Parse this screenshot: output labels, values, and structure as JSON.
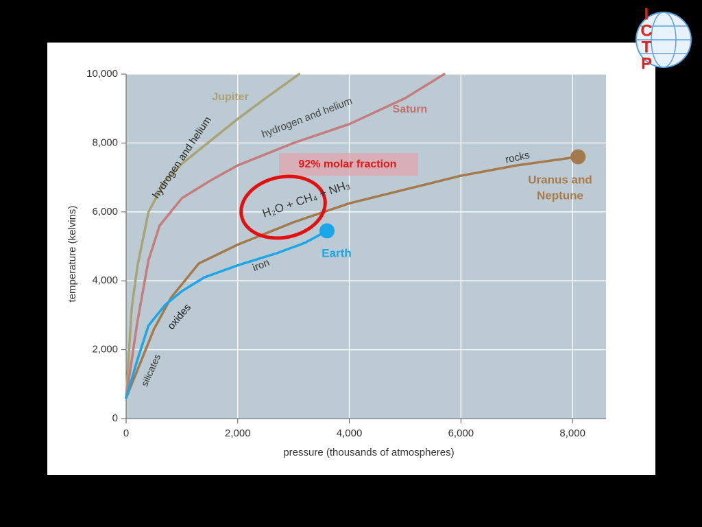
{
  "logo": {
    "letters": [
      "I",
      "C",
      "T",
      "P"
    ]
  },
  "chart_data": {
    "type": "line",
    "xlabel": "pressure (thousands of atmospheres)",
    "ylabel": "temperature (kelvins)",
    "xlim": [
      0,
      8600
    ],
    "ylim": [
      0,
      10000
    ],
    "xticks": [
      0,
      {
        "value": 2000,
        "label": "2,000"
      },
      {
        "value": 4000,
        "label": "4,000"
      },
      {
        "value": 6000,
        "label": "6,000"
      },
      {
        "value": 8000,
        "label": "8,000"
      }
    ],
    "yticks": [
      0,
      {
        "value": 2000,
        "label": "2,000"
      },
      {
        "value": 4000,
        "label": "4,000"
      },
      {
        "value": 6000,
        "label": "6,000"
      },
      {
        "value": 8000,
        "label": "8,000"
      },
      {
        "value": 10000,
        "label": "10,000"
      }
    ],
    "grid": true,
    "series": [
      {
        "name": "Jupiter",
        "color": "#a8a478",
        "x": [
          0,
          100,
          200,
          400,
          700,
          1000,
          1500,
          2000,
          2500,
          3100
        ],
        "values": [
          600,
          3200,
          4400,
          6000,
          6900,
          7400,
          8050,
          8700,
          9300,
          10000
        ]
      },
      {
        "name": "Saturn",
        "color": "#c47c7c",
        "x": [
          0,
          200,
          400,
          600,
          1000,
          1500,
          2000,
          3000,
          4000,
          5000,
          5700
        ],
        "values": [
          600,
          2800,
          4600,
          5600,
          6400,
          6900,
          7350,
          8000,
          8550,
          9300,
          10000
        ]
      },
      {
        "name": "Uranus and Neptune",
        "color": "#a47a4c",
        "x": [
          0,
          200,
          500,
          800,
          1300,
          2000,
          3000,
          4000,
          5000,
          6000,
          7000,
          8100
        ],
        "values": [
          600,
          1400,
          2600,
          3500,
          4500,
          5050,
          5700,
          6250,
          6650,
          7050,
          7350,
          7600
        ]
      },
      {
        "name": "Earth",
        "color": "#1aa6e8",
        "x": [
          0,
          200,
          400,
          700,
          1000,
          1400,
          2000,
          2700,
          3200,
          3600
        ],
        "values": [
          600,
          1700,
          2700,
          3300,
          3700,
          4100,
          4450,
          4800,
          5100,
          5450
        ]
      }
    ],
    "annotations": [
      "Jupiter",
      "hydrogen and helium",
      "hydrogen and helium",
      "Saturn",
      "rocks",
      "Uranus and",
      "Neptune",
      "Earth",
      "iron",
      "oxides",
      "silicates",
      "H₂O + CH₄ + NH₃",
      "92% molar fraction"
    ]
  }
}
